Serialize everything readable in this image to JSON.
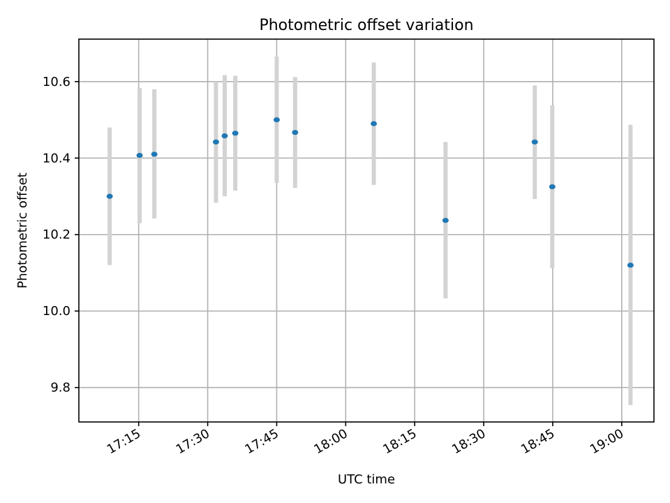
{
  "chart_data": {
    "type": "scatter",
    "title": "Photometric offset variation",
    "xlabel": "UTC time",
    "ylabel": "Photometric offset",
    "grid": true,
    "xlim_minutes": [
      1022,
      1147
    ],
    "ylim": [
      9.71,
      10.711
    ],
    "x_ticks": [
      {
        "minutes": 1035,
        "label": "17:15"
      },
      {
        "minutes": 1050,
        "label": "17:30"
      },
      {
        "minutes": 1065,
        "label": "17:45"
      },
      {
        "minutes": 1080,
        "label": "18:00"
      },
      {
        "minutes": 1095,
        "label": "18:15"
      },
      {
        "minutes": 1110,
        "label": "18:30"
      },
      {
        "minutes": 1125,
        "label": "18:45"
      },
      {
        "minutes": 1140,
        "label": "19:00"
      }
    ],
    "y_ticks": [
      {
        "value": 9.8,
        "label": "9.8"
      },
      {
        "value": 10.0,
        "label": "10.0"
      },
      {
        "value": 10.2,
        "label": "10.2"
      },
      {
        "value": 10.4,
        "label": "10.4"
      },
      {
        "value": 10.6,
        "label": "10.6"
      }
    ],
    "series": [
      {
        "name": "offset",
        "color": "#1f77b4",
        "errorbar_color": "#d3d3d3",
        "points": [
          {
            "t": 1028.7,
            "y": 10.3,
            "lo": 10.12,
            "hi": 10.48
          },
          {
            "t": 1035.2,
            "y": 10.407,
            "lo": 10.23,
            "hi": 10.583
          },
          {
            "t": 1038.4,
            "y": 10.41,
            "lo": 10.242,
            "hi": 10.58
          },
          {
            "t": 1051.8,
            "y": 10.442,
            "lo": 10.283,
            "hi": 10.6
          },
          {
            "t": 1053.7,
            "y": 10.458,
            "lo": 10.3,
            "hi": 10.617
          },
          {
            "t": 1056.0,
            "y": 10.465,
            "lo": 10.315,
            "hi": 10.615
          },
          {
            "t": 1065.0,
            "y": 10.5,
            "lo": 10.335,
            "hi": 10.665
          },
          {
            "t": 1069.0,
            "y": 10.467,
            "lo": 10.322,
            "hi": 10.612
          },
          {
            "t": 1086.1,
            "y": 10.49,
            "lo": 10.33,
            "hi": 10.65
          },
          {
            "t": 1101.7,
            "y": 10.237,
            "lo": 10.033,
            "hi": 10.442
          },
          {
            "t": 1121.1,
            "y": 10.442,
            "lo": 10.293,
            "hi": 10.59
          },
          {
            "t": 1124.9,
            "y": 10.325,
            "lo": 10.112,
            "hi": 10.538
          },
          {
            "t": 1141.9,
            "y": 10.12,
            "lo": 9.754,
            "hi": 10.487
          }
        ]
      }
    ]
  }
}
